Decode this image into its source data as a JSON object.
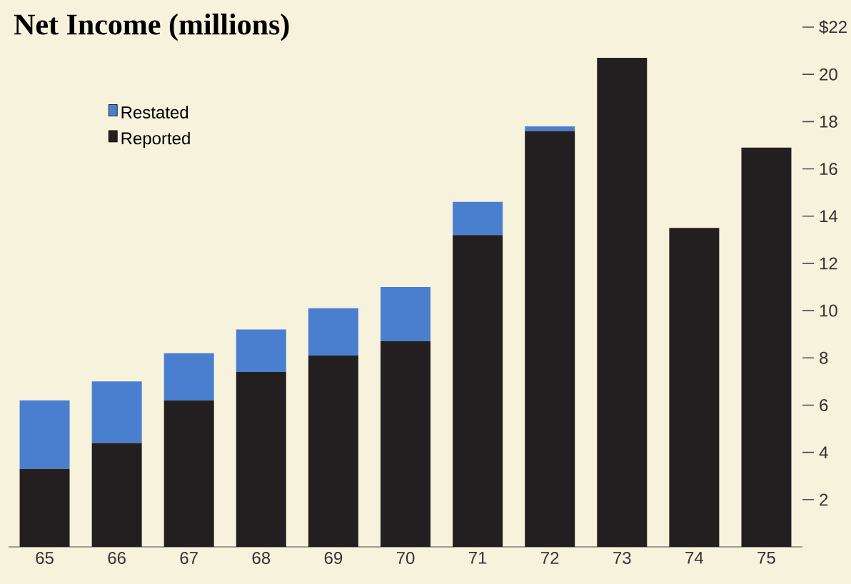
{
  "chart_data": {
    "type": "bar",
    "title": "Net Income (millions)",
    "stacked": true,
    "categories": [
      "65",
      "66",
      "67",
      "68",
      "69",
      "70",
      "71",
      "72",
      "73",
      "74",
      "75"
    ],
    "series": [
      {
        "name": "Reported",
        "color": "#231f20",
        "values": [
          3.3,
          4.4,
          6.2,
          7.4,
          8.1,
          8.7,
          13.2,
          17.6,
          20.7,
          13.5,
          16.9
        ]
      },
      {
        "name": "Restated",
        "color": "#4a7fd0",
        "values": [
          2.9,
          2.6,
          2.0,
          1.8,
          2.0,
          2.3,
          1.4,
          0.2,
          null,
          null,
          null
        ]
      }
    ],
    "ylim": [
      0,
      22
    ],
    "yticks": [
      2,
      4,
      6,
      8,
      10,
      12,
      14,
      16,
      18,
      20,
      {
        "value": 22,
        "label": "$22"
      }
    ],
    "grid": false,
    "legend": "top left"
  }
}
